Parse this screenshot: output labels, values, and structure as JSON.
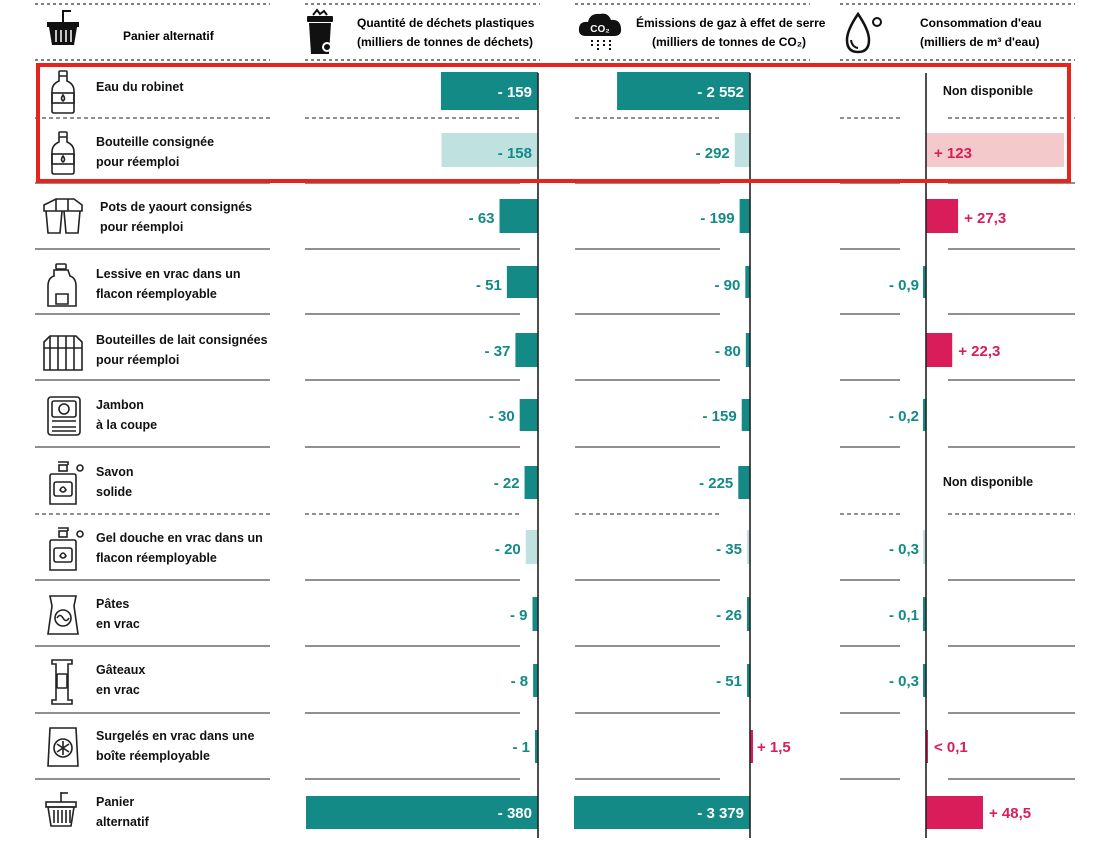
{
  "colors": {
    "teal": "#138a86",
    "teal_light": "#bfe1e0",
    "pink": "#d81d5a",
    "pink_light": "#f4c9cb",
    "highlight_box": "#e8231e",
    "line": "#222222"
  },
  "header": {
    "basket": "Panier alternatif",
    "waste": [
      "Quantité de déchets plastiques",
      "(milliers de tonnes de déchets)"
    ],
    "ghg": [
      "Émissions de gaz à effet de serre",
      "(milliers de tonnes de CO₂)"
    ],
    "water": [
      "Consommation d'eau",
      "(milliers de m³ d'eau)"
    ],
    "co2_badge": "CO₂"
  },
  "chart_data": {
    "type": "bar",
    "series": [
      {
        "name": "Quantité de déchets plastiques (milliers de tonnes de déchets)",
        "key": "waste"
      },
      {
        "name": "Émissions de gaz à effet de serre (milliers de tonnes de CO₂)",
        "key": "ghg"
      },
      {
        "name": "Consommation d'eau (milliers de m³ d'eau)",
        "key": "water"
      }
    ],
    "rows": [
      {
        "label": [
          "Eau du robinet"
        ],
        "icon": "bottle-icon",
        "waste": -159,
        "waste_text": "- 159",
        "ghg": -2552,
        "ghg_text": "- 2 552",
        "water": null,
        "water_text": "Non disponible",
        "shade": "dark"
      },
      {
        "label": [
          "Bouteille consignée",
          "pour réemploi"
        ],
        "icon": "bottle-icon",
        "waste": -158,
        "waste_text": "- 158",
        "ghg": -292,
        "ghg_text": "- 292",
        "water": 123,
        "water_text": "+ 123",
        "shade": "light"
      },
      {
        "label": [
          "Pots de yaourt consignés",
          "pour réemploi"
        ],
        "icon": "yogurt-pots-icon",
        "waste": -63,
        "waste_text": "- 63",
        "ghg": -199,
        "ghg_text": "- 199",
        "water": 27.3,
        "water_text": "+ 27,3",
        "shade": "dark"
      },
      {
        "label": [
          "Lessive en vrac dans un",
          "flacon réemployable"
        ],
        "icon": "detergent-bottle-icon",
        "waste": -51,
        "waste_text": "- 51",
        "ghg": -90,
        "ghg_text": "- 90",
        "water": -0.9,
        "water_text": "- 0,9",
        "shade": "dark"
      },
      {
        "label": [
          "Bouteilles de lait consignées",
          "pour réemploi"
        ],
        "icon": "milk-bottles-icon",
        "waste": -37,
        "waste_text": "- 37",
        "ghg": -80,
        "ghg_text": "- 80",
        "water": 22.3,
        "water_text": "+ 22,3",
        "shade": "dark"
      },
      {
        "label": [
          "Jambon",
          "à la coupe"
        ],
        "icon": "ham-tray-icon",
        "waste": -30,
        "waste_text": "- 30",
        "ghg": -159,
        "ghg_text": "- 159",
        "water": -0.2,
        "water_text": "- 0,2",
        "shade": "dark"
      },
      {
        "label": [
          "Savon",
          "solide"
        ],
        "icon": "soap-dispenser-icon",
        "waste": -22,
        "waste_text": "- 22",
        "ghg": -225,
        "ghg_text": "- 225",
        "water": null,
        "water_text": "Non disponible",
        "shade": "dark"
      },
      {
        "label": [
          "Gel douche en vrac dans un",
          "flacon réemployable"
        ],
        "icon": "soap-dispenser-icon",
        "waste": -20,
        "waste_text": "- 20",
        "ghg": -35,
        "ghg_text": "- 35",
        "water": -0.3,
        "water_text": "- 0,3",
        "shade": "light"
      },
      {
        "label": [
          "Pâtes",
          "en vrac"
        ],
        "icon": "pasta-bag-icon",
        "waste": -9,
        "waste_text": "- 9",
        "ghg": -26,
        "ghg_text": "- 26",
        "water": -0.1,
        "water_text": "- 0,1",
        "shade": "dark"
      },
      {
        "label": [
          "Gâteaux",
          "en vrac"
        ],
        "icon": "biscuit-pack-icon",
        "waste": -8,
        "waste_text": "- 8",
        "ghg": -51,
        "ghg_text": "- 51",
        "water": -0.3,
        "water_text": "- 0,3",
        "shade": "dark"
      },
      {
        "label": [
          "Surgelés en vrac dans une",
          "boîte réemployable"
        ],
        "icon": "frozen-bag-icon",
        "waste": -1,
        "waste_text": "- 1",
        "ghg": 1.5,
        "ghg_text": "+ 1,5",
        "water": 0.05,
        "water_text": "< 0,1",
        "shade": "dark"
      },
      {
        "label": [
          "Panier",
          "alternatif"
        ],
        "icon": "basket-icon",
        "waste": -380,
        "waste_text": "- 380",
        "ghg": -3379,
        "ghg_text": "- 3 379",
        "water": 48.5,
        "water_text": "+ 48,5",
        "shade": "dark"
      }
    ],
    "highlighted_rows": [
      0,
      1
    ],
    "grid": false,
    "legend": "none"
  }
}
